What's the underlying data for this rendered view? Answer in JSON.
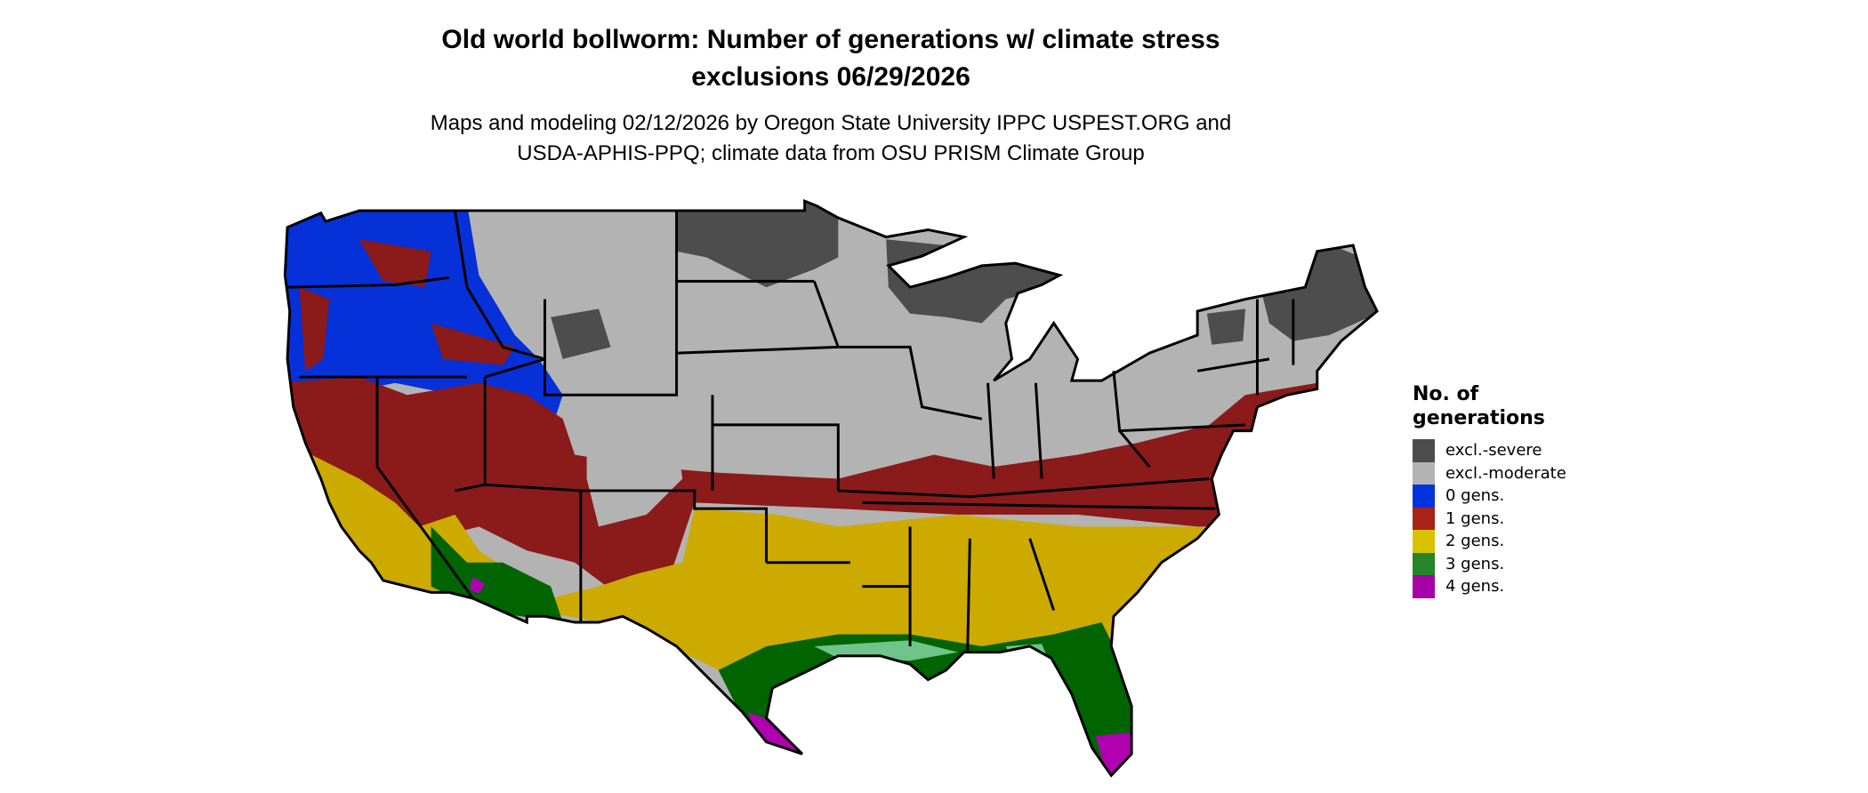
{
  "title": {
    "line1": "Old world bollworm: Number of generations w/ climate stress",
    "line2": "exclusions 06/29/2026"
  },
  "subtitle": {
    "line1": "Maps and modeling 02/12/2026 by Oregon State University IPPC USPEST.ORG and",
    "line2": "USDA-APHIS-PPQ; climate data from OSU PRISM Climate Group"
  },
  "legend": {
    "title_line1": "No. of",
    "title_line2": "generations",
    "items": [
      {
        "label": "excl.-severe",
        "color": "#4d4d4d"
      },
      {
        "label": "excl.-moderate",
        "color": "#b3b3b3"
      },
      {
        "label": "0 gens.",
        "color": "#0033dd"
      },
      {
        "label": "1 gens.",
        "color": "#a82317"
      },
      {
        "label": "2 gens.",
        "color": "#d9c200"
      },
      {
        "label": "3 gens.",
        "color": "#268526"
      },
      {
        "label": "4 gens.",
        "color": "#a600a6"
      }
    ]
  },
  "map_colors": {
    "severe": "#4d4d4d",
    "moderate": "#b3b3b3",
    "gen0": "#0630d8",
    "gen1": "#8b1a1a",
    "gen2": "#ccaa00",
    "gen3": "#006400",
    "gen4": "#b000b0"
  }
}
